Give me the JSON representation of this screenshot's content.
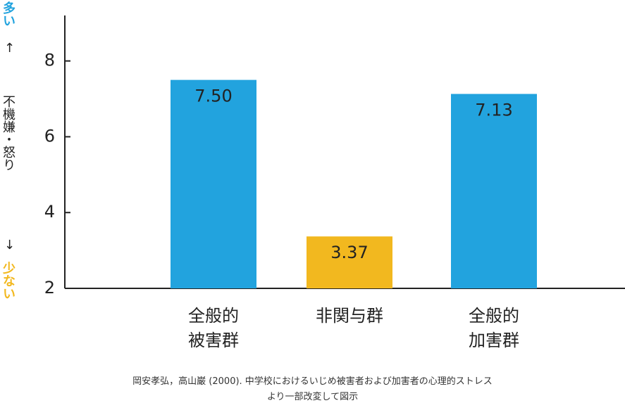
{
  "chart_data": {
    "type": "bar",
    "categories": [
      "全般的\n被害群",
      "非関与群",
      "全般的\n加害群"
    ],
    "values": [
      7.5,
      3.37,
      7.13
    ],
    "value_labels": [
      "7.50",
      "3.37",
      "7.13"
    ],
    "colors": [
      "#22a3de",
      "#f2b81f",
      "#22a3de"
    ],
    "ylim": [
      2,
      9.2
    ],
    "yticks": [
      2,
      4,
      6,
      8
    ],
    "grid": false,
    "y_label_parts": [
      {
        "text": "多い",
        "color": "#22a3de"
      },
      {
        "text": "↑",
        "color": "#222222"
      },
      {
        "text": "不機嫌・怒り",
        "color": "#222222"
      },
      {
        "text": "↓",
        "color": "#222222"
      },
      {
        "text": "少ない",
        "color": "#f2b81f"
      }
    ],
    "source": [
      "岡安孝弘，高山巌 (2000). 中学校におけるいじめ被害者および加害者の心理的ストレス",
      "より一部改変して図示"
    ]
  }
}
